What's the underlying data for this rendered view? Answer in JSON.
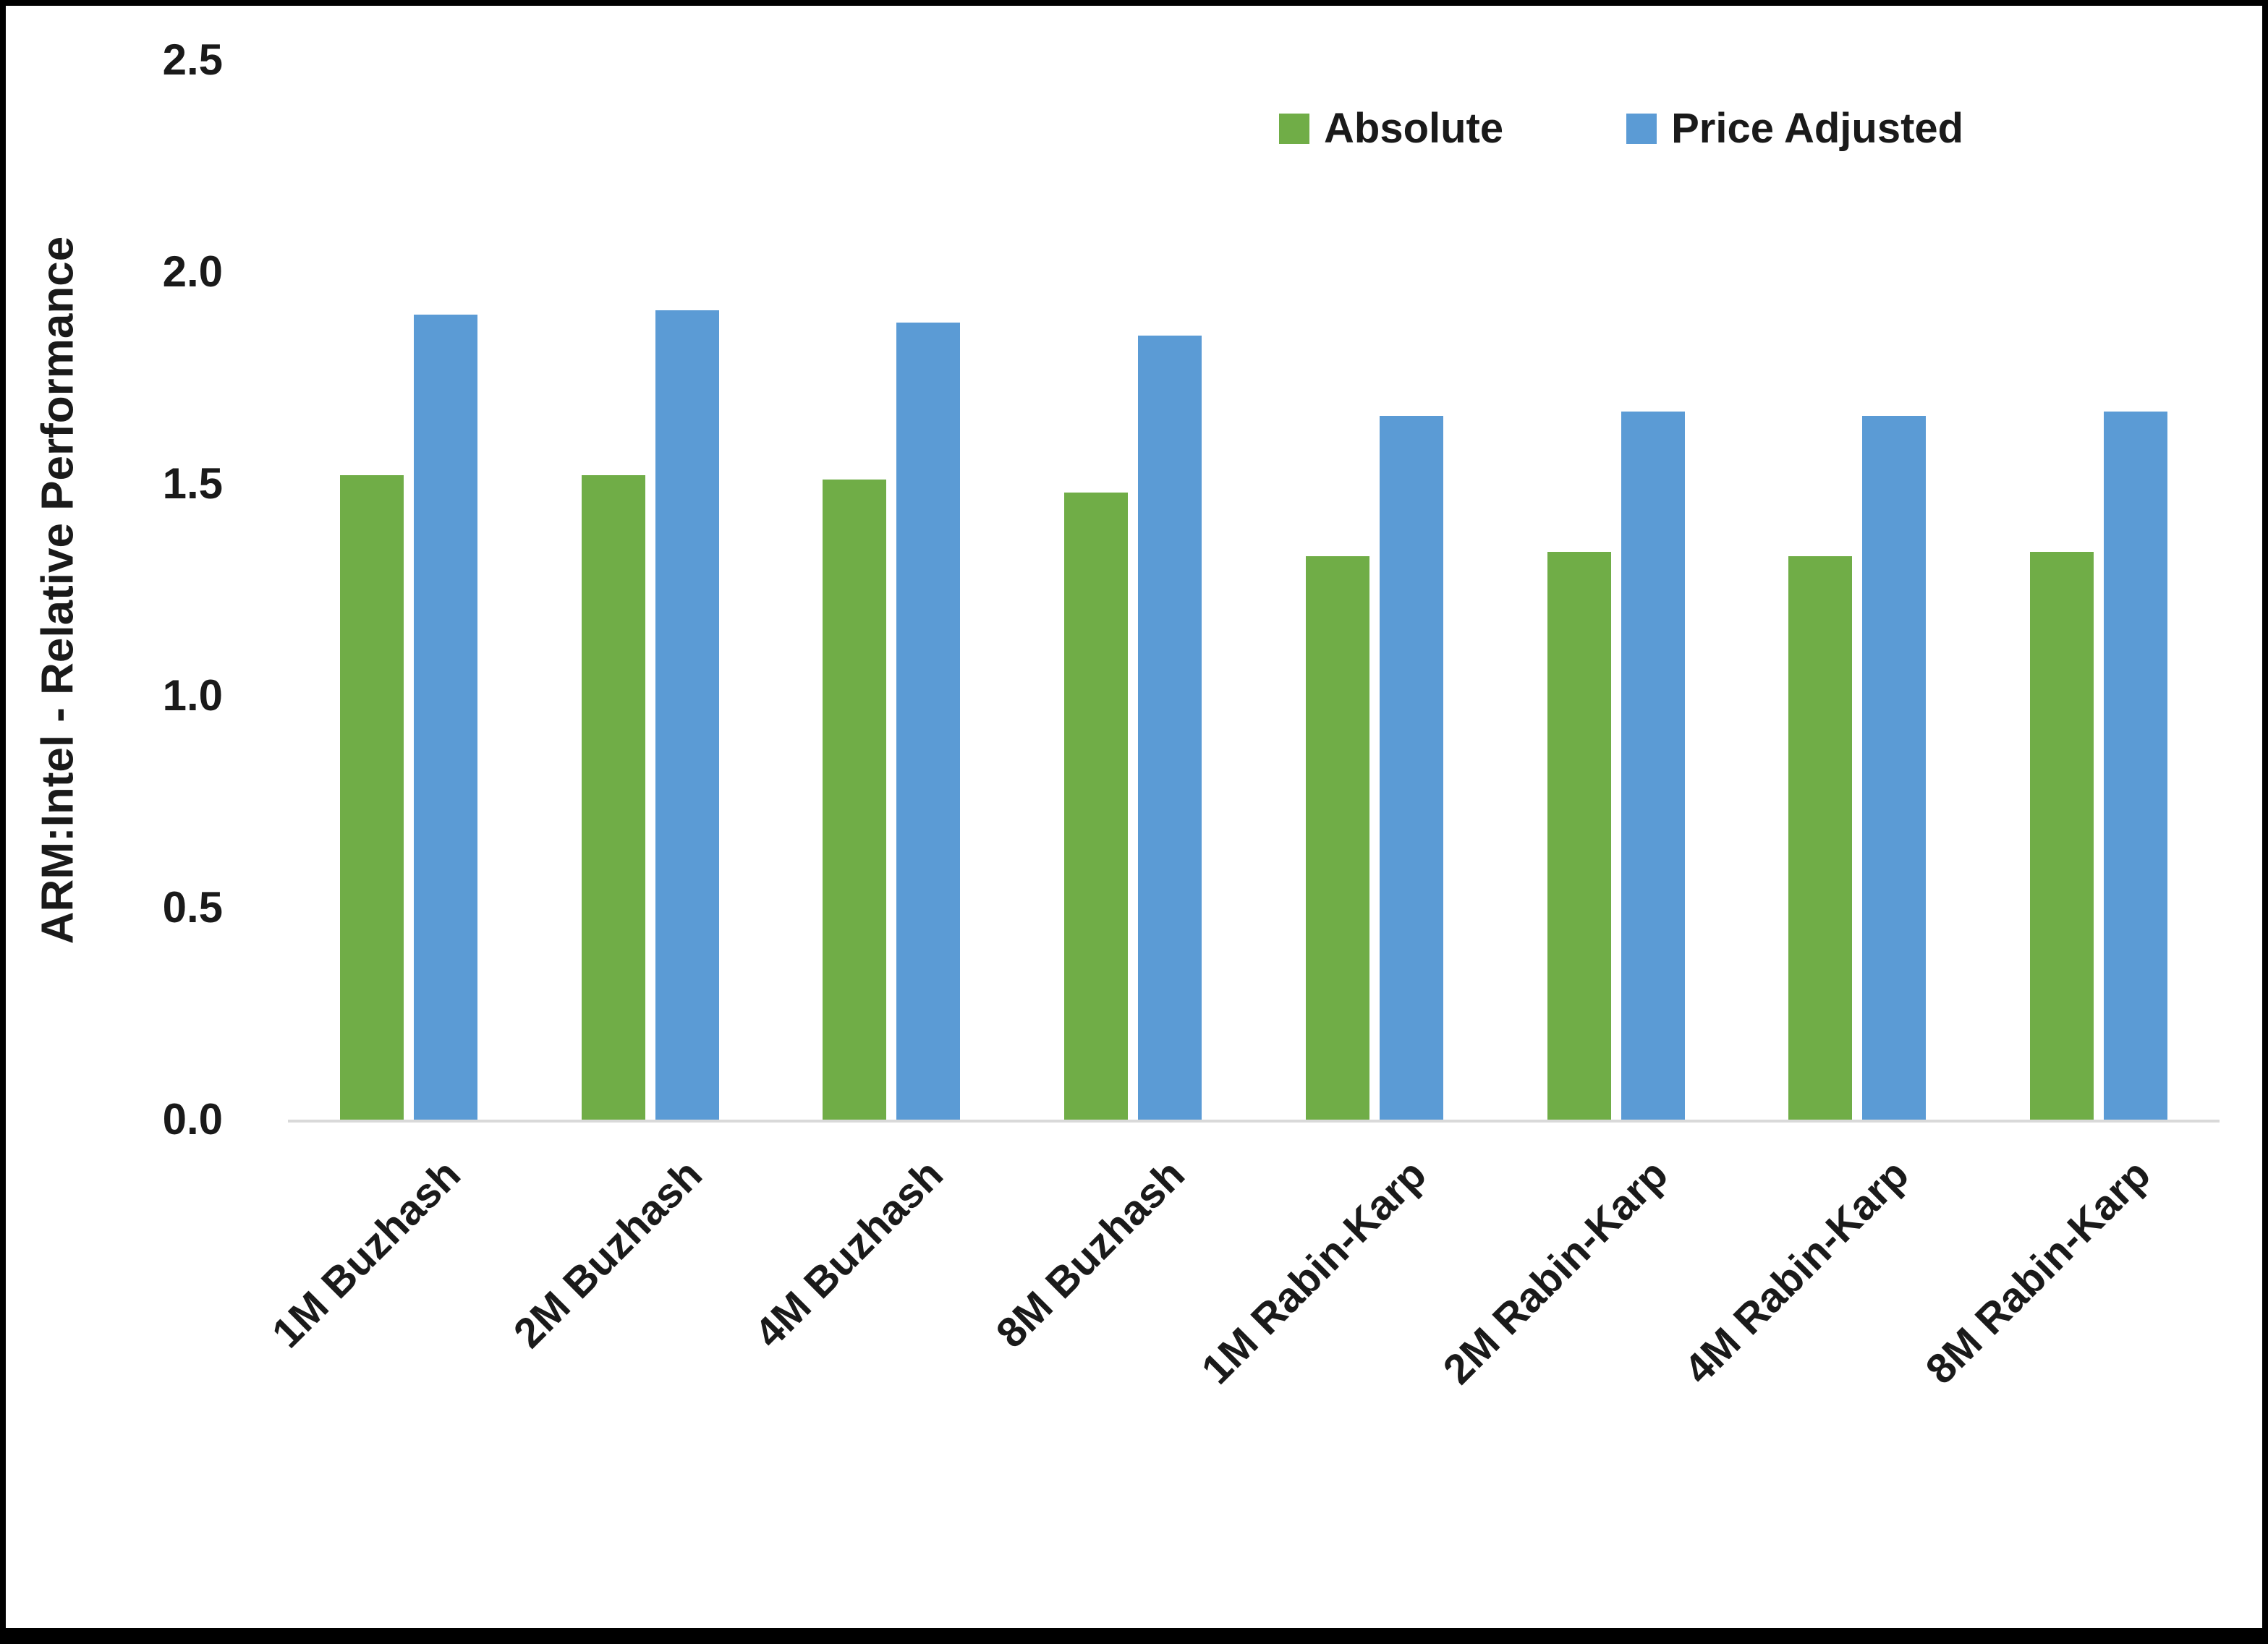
{
  "chart_data": {
    "type": "bar",
    "title": "",
    "xlabel": "",
    "ylabel": "ARM:Intel - Relative Performance",
    "ylim": [
      0,
      2.5
    ],
    "yticks": [
      0.0,
      0.5,
      1.0,
      1.5,
      2.0,
      2.5
    ],
    "ytick_labels": [
      "0.0",
      "0.5",
      "1.0",
      "1.5",
      "2.0",
      "2.5"
    ],
    "grid": false,
    "legend_position": "top-right",
    "categories": [
      "1M Buzhash",
      "2M Buzhash",
      "4M Buzhash",
      "8M Buzhash",
      "1M Rabin-Karp",
      "2M Rabin-Karp",
      "4M Rabin-Karp",
      "8M Rabin-Karp"
    ],
    "series": [
      {
        "name": "Absolute",
        "color": "#70AD47",
        "values": [
          1.52,
          1.52,
          1.51,
          1.48,
          1.33,
          1.34,
          1.33,
          1.34
        ]
      },
      {
        "name": "Price Adjusted",
        "color": "#5B9BD5",
        "values": [
          1.9,
          1.91,
          1.88,
          1.85,
          1.66,
          1.67,
          1.66,
          1.67
        ]
      }
    ]
  }
}
